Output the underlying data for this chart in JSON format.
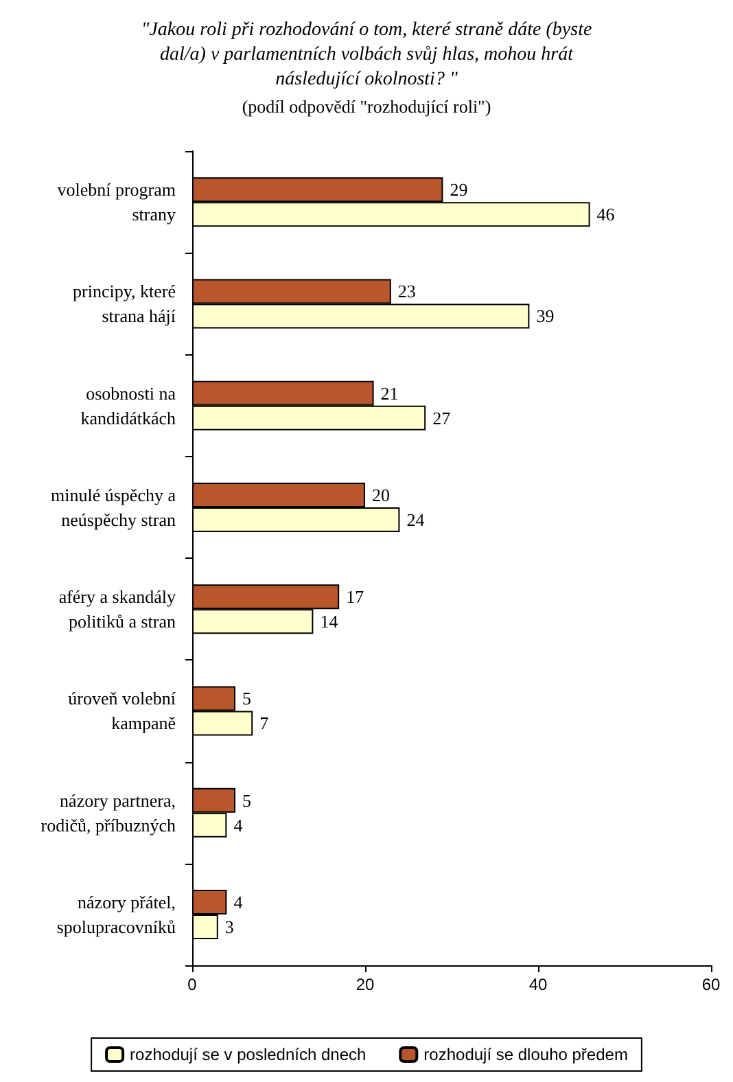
{
  "chart_data": {
    "type": "bar",
    "orientation": "horizontal",
    "title": "\"Jakou roli při rozhodování o tom, které straně dáte (byste\ndal/a) v parlamentních volbách svůj hlas, mohou hrát\nnásledující okolnosti? \"",
    "subtitle": "(podíl odpovědí \"rozhodující roli\")",
    "categories": [
      "volební program\nstrany",
      "principy, které\nstrana hájí",
      "osobnosti na\nkandidátkách",
      "minulé úspěchy a\nneúspěchy stran",
      "aféry a skandály\npolitiků a stran",
      "úroveň volební\nkampaně",
      "názory partnera,\nrodičů, příbuzných",
      "názory přátel,\nspolupracovníků"
    ],
    "series": [
      {
        "name": "rozhodují se v posledních dnech",
        "color": "#ffffcc",
        "values": [
          46,
          39,
          27,
          24,
          14,
          7,
          4,
          3
        ]
      },
      {
        "name": "rozhodují se dlouho předem",
        "color": "#b8562c",
        "values": [
          29,
          23,
          21,
          20,
          17,
          5,
          5,
          4
        ]
      }
    ],
    "xlim": [
      0,
      60
    ],
    "xticks": [
      0,
      20,
      40,
      60
    ],
    "data_labels": true,
    "grid": false,
    "legend": "bottom"
  }
}
